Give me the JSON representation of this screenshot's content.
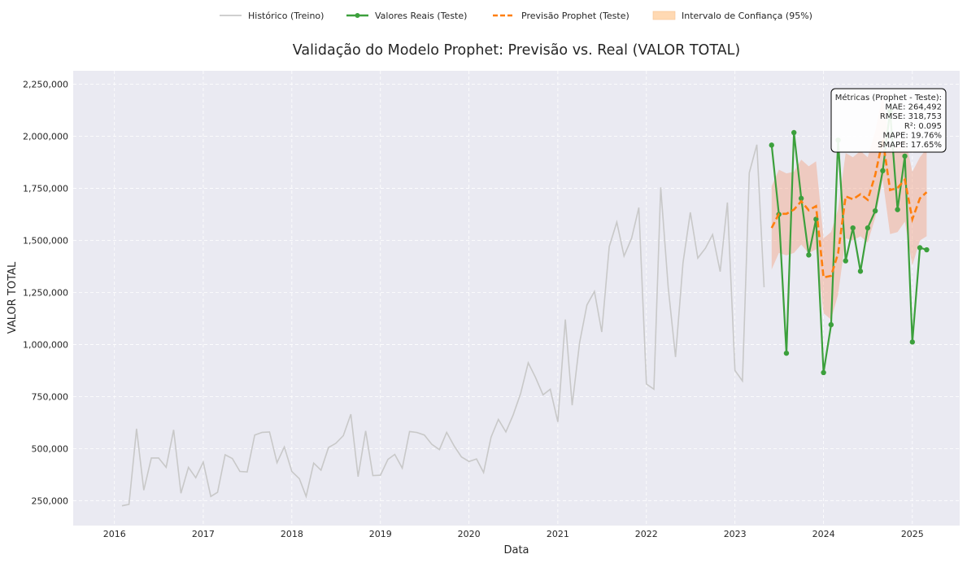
{
  "chart_data": {
    "type": "line",
    "title": "Validação do Modelo Prophet: Previsão vs. Real (VALOR TOTAL)",
    "xlabel": "Data",
    "ylabel": "VALOR TOTAL",
    "x_range": [
      "2015-07-15",
      "2025-07-15"
    ],
    "ylim": [
      130000,
      2315000
    ],
    "x_ticks": [
      "2016",
      "2017",
      "2018",
      "2019",
      "2020",
      "2021",
      "2022",
      "2023",
      "2024",
      "2025"
    ],
    "y_ticks": [
      {
        "value": 250000,
        "label": "250,000"
      },
      {
        "value": 500000,
        "label": "500,000"
      },
      {
        "value": 750000,
        "label": "750,000"
      },
      {
        "value": 1000000,
        "label": "1,000,000"
      },
      {
        "value": 1250000,
        "label": "1,250,000"
      },
      {
        "value": 1500000,
        "label": "1,500,000"
      },
      {
        "value": 1750000,
        "label": "1,750,000"
      },
      {
        "value": 2000000,
        "label": "2,000,000"
      },
      {
        "value": 2250000,
        "label": "2,250,000"
      }
    ],
    "grid": true,
    "legend_position": "top-center",
    "legend": [
      {
        "label": "Histórico (Treino)",
        "color": "#c8c8c8",
        "style": "solid"
      },
      {
        "label": "Valores Reais (Teste)",
        "color": "#3ca03c",
        "style": "solid-marker"
      },
      {
        "label": "Previsão Prophet (Teste)",
        "color": "#ff7f0e",
        "style": "dashed"
      },
      {
        "label": "Intervalo de Confiança (95%)",
        "color": "#ffd9b3",
        "style": "area"
      }
    ],
    "historical": {
      "name": "Histórico (Treino)",
      "start": "2016-02",
      "values": [
        225000,
        232000,
        595000,
        300000,
        455000,
        455000,
        410000,
        590000,
        285000,
        410000,
        360000,
        435000,
        270000,
        290000,
        470000,
        452000,
        390000,
        388000,
        565000,
        578000,
        580000,
        432000,
        508000,
        390000,
        355000,
        270000,
        430000,
        396000,
        505000,
        525000,
        562000,
        665000,
        365000,
        585000,
        370000,
        372000,
        448000,
        472000,
        406000,
        582000,
        577000,
        565000,
        520000,
        495000,
        578000,
        512000,
        460000,
        438000,
        450000,
        385000,
        555000,
        640000,
        580000,
        662000,
        765000,
        912000,
        842000,
        758000,
        785000,
        628000,
        1120000,
        708000,
        1010000,
        1190000,
        1255000,
        1060000,
        1470000,
        1588000,
        1425000,
        1510000,
        1658000,
        810000,
        785000,
        1755000,
        1275000,
        940000,
        1392000,
        1635000,
        1415000,
        1462000,
        1528000,
        1350000,
        1682000,
        875000,
        825000,
        1825000,
        1960000,
        1275000
      ]
    },
    "test_actual": {
      "name": "Valores Reais (Teste)",
      "start": "2023-06",
      "values": [
        1958000,
        1625000,
        958000,
        2018000,
        1702000,
        1430000,
        1602000,
        865000,
        1095000,
        1982000,
        1402000,
        1560000,
        1352000,
        1560000,
        1642000,
        1835000,
        2122000,
        1648000,
        1905000,
        1012000,
        1465000,
        1455000
      ]
    },
    "test_forecast": {
      "name": "Previsão Prophet (Teste)",
      "start": "2023-06",
      "values": [
        1560000,
        1628000,
        1628000,
        1648000,
        1688000,
        1645000,
        1665000,
        1322000,
        1330000,
        1438000,
        1712000,
        1698000,
        1722000,
        1695000,
        1815000,
        1985000,
        1742000,
        1752000,
        1792000,
        1602000,
        1702000,
        1732000
      ]
    },
    "confidence_interval": {
      "name": "Intervalo de Confiança (95%)",
      "start": "2023-06",
      "lower": [
        1360000,
        1440000,
        1428000,
        1440000,
        1480000,
        1438000,
        1458000,
        1150000,
        1120000,
        1240000,
        1510000,
        1500000,
        1520000,
        1490000,
        1610000,
        1790000,
        1530000,
        1540000,
        1590000,
        1380000,
        1500000,
        1520000
      ],
      "upper": [
        1760000,
        1840000,
        1822000,
        1830000,
        1888000,
        1856000,
        1880000,
        1510000,
        1540000,
        1650000,
        1920000,
        1900000,
        1930000,
        1900000,
        2025000,
        2200000,
        1950000,
        1960000,
        2000000,
        1830000,
        1900000,
        1940000
      ]
    },
    "metrics_box": {
      "lines": [
        "Métricas (Prophet - Teste):",
        "MAE: 264,492",
        "RMSE: 318,753",
        "R²: 0.095",
        "MAPE: 19.76%",
        "SMAPE: 17.65%"
      ]
    }
  }
}
